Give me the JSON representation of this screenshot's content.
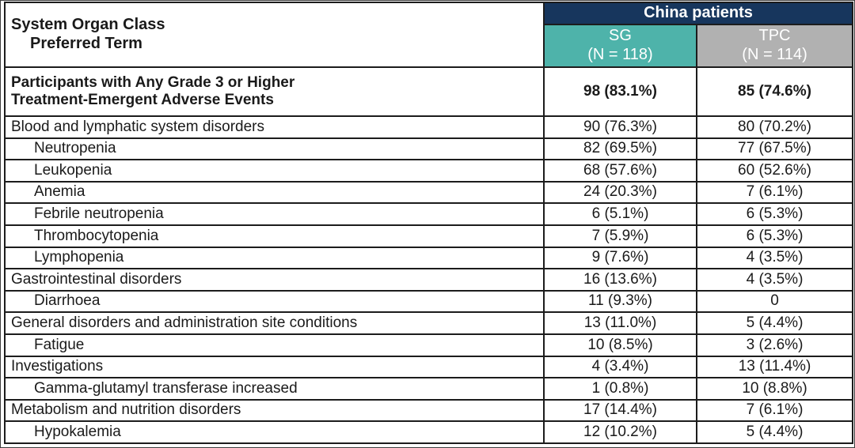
{
  "table": {
    "corner_header": {
      "line1": "System Organ Class",
      "line2": "Preferred Term"
    },
    "group_header": "China patients",
    "columns": [
      {
        "name": "SG",
        "n_label": "(N = 118)"
      },
      {
        "name": "TPC",
        "n_label": "(N = 114)"
      }
    ],
    "rows": [
      {
        "label_line1": "Participants with Any Grade 3 or Higher",
        "label_line2": "Treatment-Emergent Adverse Events",
        "sg": "98 (83.1%)",
        "tpc": "85 (74.6%)"
      },
      {
        "label": "Blood and lymphatic system disorders",
        "sg": "90 (76.3%)",
        "tpc": "80 (70.2%)"
      },
      {
        "label": "Neutropenia",
        "sg": "82 (69.5%)",
        "tpc": "77 (67.5%)"
      },
      {
        "label": "Leukopenia",
        "sg": "68 (57.6%)",
        "tpc": "60 (52.6%)"
      },
      {
        "label": "Anemia",
        "sg": "24 (20.3%)",
        "tpc": "7 (6.1%)"
      },
      {
        "label": "Febrile neutropenia",
        "sg": "6 (5.1%)",
        "tpc": "6 (5.3%)"
      },
      {
        "label": "Thrombocytopenia",
        "sg": "7 (5.9%)",
        "tpc": "6 (5.3%)"
      },
      {
        "label": "Lymphopenia",
        "sg": "9 (7.6%)",
        "tpc": "4 (3.5%)"
      },
      {
        "label": "Gastrointestinal disorders",
        "sg": "16 (13.6%)",
        "tpc": "4 (3.5%)"
      },
      {
        "label": "Diarrhoea",
        "sg": "11 (9.3%)",
        "tpc": "0"
      },
      {
        "label": "General disorders and administration site conditions",
        "sg": "13 (11.0%)",
        "tpc": "5 (4.4%)"
      },
      {
        "label": "Fatigue",
        "sg": "10 (8.5%)",
        "tpc": "3 (2.6%)"
      },
      {
        "label": "Investigations",
        "sg": "4 (3.4%)",
        "tpc": "13 (11.4%)"
      },
      {
        "label": "Gamma-glutamyl transferase increased",
        "sg": "1 (0.8%)",
        "tpc": "10 (8.8%)"
      },
      {
        "label": "Metabolism and nutrition disorders",
        "sg": "17 (14.4%)",
        "tpc": "7 (6.1%)"
      },
      {
        "label": "Hypokalemia",
        "sg": "12 (10.2%)",
        "tpc": "5 (4.4%)"
      }
    ],
    "colors": {
      "group_header_bg": "#17365d",
      "sg_header_bg": "#4eb3aa",
      "tpc_header_bg": "#b1b1b1",
      "header_text": "#ffffff",
      "border": "#1c1c1c"
    }
  }
}
